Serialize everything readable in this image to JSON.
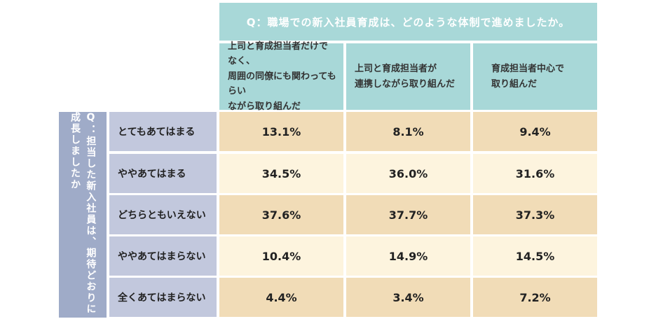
{
  "chart_data": {
    "type": "table",
    "title": "Q：職場での新入社員育成は、どのような体制で進めましたか。",
    "row_title": "Q：担当した新入社員は、期待どおりに成長しましたか",
    "columns": [
      "上司と育成担当者だけでなく、\n周囲の同僚にも関わってもらい\nながら取り組んだ",
      "上司と育成担当者が\n連携しながら取り組んだ",
      "育成担当者中心で\n取り組んだ"
    ],
    "rows": [
      {
        "label": "とてもあてはまる",
        "values": [
          "13.1%",
          "8.1%",
          "9.4%"
        ]
      },
      {
        "label": "ややあてはまる",
        "values": [
          "34.5%",
          "36.0%",
          "31.6%"
        ]
      },
      {
        "label": "どちらともいえない",
        "values": [
          "37.6%",
          "37.7%",
          "37.3%"
        ]
      },
      {
        "label": "ややあてはまらない",
        "values": [
          "10.4%",
          "14.9%",
          "14.5%"
        ]
      },
      {
        "label": "全くあてはまらない",
        "values": [
          "4.4%",
          "3.4%",
          "7.2%"
        ]
      }
    ],
    "colors": {
      "header_teal": "#a8d8d8",
      "side_header": "#9fabc8",
      "row_header": "#c2c8dd",
      "row_tan": "#f1dcb7",
      "row_cream": "#fdf4de"
    }
  }
}
